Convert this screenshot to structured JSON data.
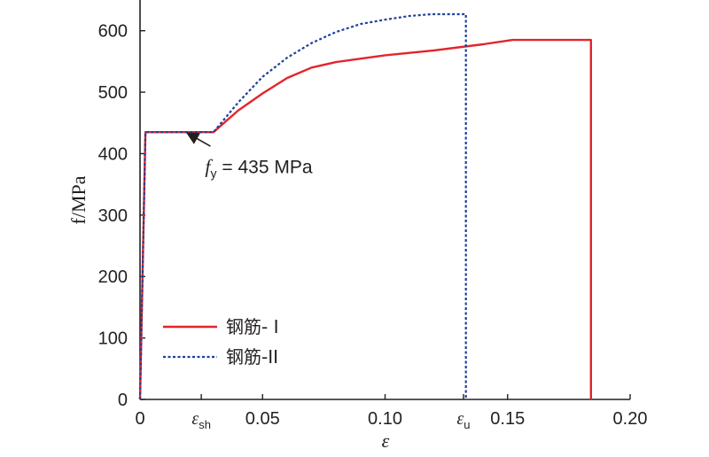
{
  "chart_data": {
    "type": "line",
    "xlabel": "ε",
    "ylabel": "f/MPa",
    "xlim": [
      0,
      0.2
    ],
    "ylim": [
      0,
      650
    ],
    "x_ticks": [
      {
        "value": 0,
        "label": "0"
      },
      {
        "value": 0.025,
        "label": "",
        "symbol": "ε",
        "sub": "sh"
      },
      {
        "value": 0.05,
        "label": "0.05"
      },
      {
        "value": 0.1,
        "label": "0.10"
      },
      {
        "value": 0.132,
        "label": "",
        "symbol": "ε",
        "sub": "u"
      },
      {
        "value": 0.15,
        "label": "0.15"
      },
      {
        "value": 0.2,
        "label": "0.20"
      }
    ],
    "y_ticks": [
      {
        "value": 0,
        "label": "0"
      },
      {
        "value": 100,
        "label": "100"
      },
      {
        "value": 200,
        "label": "200"
      },
      {
        "value": 300,
        "label": "300"
      },
      {
        "value": 400,
        "label": "400"
      },
      {
        "value": 500,
        "label": "500"
      },
      {
        "value": 600,
        "label": "600"
      }
    ],
    "grid": false,
    "legend_position": "bottom-left",
    "annotation": {
      "symbol": "f",
      "sub": "y",
      "text": " = 435 MPa",
      "arrow_from": [
        0.028,
        415
      ],
      "arrow_to": [
        0.012,
        435
      ],
      "label_at": [
        0.028,
        380
      ]
    },
    "series": [
      {
        "name": "钢筋- I",
        "color": "#e3242b",
        "style": "solid",
        "points": [
          [
            0,
            0
          ],
          [
            0.0022,
            435
          ],
          [
            0.03,
            435
          ],
          [
            0.04,
            470
          ],
          [
            0.05,
            498
          ],
          [
            0.06,
            523
          ],
          [
            0.07,
            540
          ],
          [
            0.08,
            549
          ],
          [
            0.1,
            560
          ],
          [
            0.12,
            568
          ],
          [
            0.14,
            578
          ],
          [
            0.152,
            585
          ],
          [
            0.184,
            585
          ],
          [
            0.184,
            0
          ]
        ]
      },
      {
        "name": "钢筋-II",
        "color": "#1f3f99",
        "style": "dotted",
        "points": [
          [
            0,
            0
          ],
          [
            0.0022,
            435
          ],
          [
            0.03,
            435
          ],
          [
            0.04,
            483
          ],
          [
            0.05,
            525
          ],
          [
            0.06,
            556
          ],
          [
            0.07,
            580
          ],
          [
            0.08,
            598
          ],
          [
            0.09,
            611
          ],
          [
            0.1,
            618
          ],
          [
            0.11,
            624
          ],
          [
            0.119,
            627
          ],
          [
            0.133,
            627
          ],
          [
            0.133,
            0
          ]
        ]
      }
    ]
  }
}
